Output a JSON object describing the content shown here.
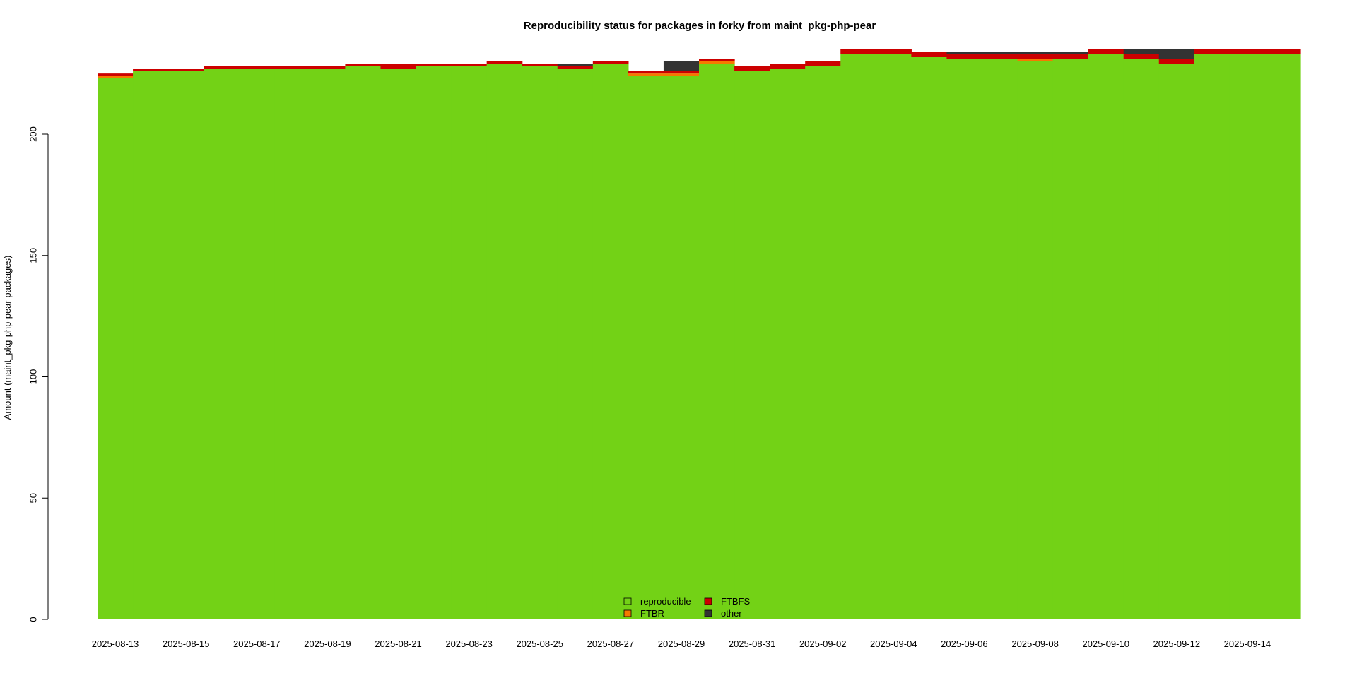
{
  "chart_data": {
    "type": "area",
    "stacked": true,
    "step": true,
    "title": "Reproducibility status for packages in forky from maint_pkg-php-pear",
    "xlabel": "",
    "ylabel": "Amount (maint_pkg-php-pear packages)",
    "ylim": [
      0,
      234
    ],
    "yticks": [
      0,
      50,
      100,
      150,
      200
    ],
    "xticks": [
      "2025-08-13",
      "2025-08-15",
      "2025-08-17",
      "2025-08-19",
      "2025-08-21",
      "2025-08-23",
      "2025-08-25",
      "2025-08-27",
      "2025-08-29",
      "2025-08-31",
      "2025-09-02",
      "2025-09-04",
      "2025-09-06",
      "2025-09-08",
      "2025-09-10",
      "2025-09-12",
      "2025-09-14"
    ],
    "x": [
      "2025-08-13",
      "2025-08-14",
      "2025-08-15",
      "2025-08-16",
      "2025-08-17",
      "2025-08-18",
      "2025-08-19",
      "2025-08-20",
      "2025-08-21",
      "2025-08-22",
      "2025-08-23",
      "2025-08-24",
      "2025-08-25",
      "2025-08-26",
      "2025-08-27",
      "2025-08-28",
      "2025-08-29",
      "2025-08-30",
      "2025-08-31",
      "2025-09-01",
      "2025-09-02",
      "2025-09-03",
      "2025-09-04",
      "2025-09-05",
      "2025-09-06",
      "2025-09-07",
      "2025-09-08",
      "2025-09-09",
      "2025-09-10",
      "2025-09-11",
      "2025-09-12",
      "2025-09-13",
      "2025-09-14",
      "2025-09-15"
    ],
    "series": [
      {
        "name": "reproducible",
        "color": "#73d216",
        "values": [
          223,
          226,
          226,
          227,
          227,
          227,
          227,
          228,
          227,
          228,
          228,
          229,
          228,
          227,
          229,
          224,
          224,
          229,
          226,
          227,
          228,
          233,
          233,
          232,
          231,
          231,
          230,
          231,
          233,
          231,
          229,
          233,
          233,
          233
        ]
      },
      {
        "name": "FTBR",
        "color": "#f57900",
        "values": [
          1,
          0,
          0,
          0,
          0,
          0,
          0,
          0,
          0,
          0,
          0,
          0,
          0,
          0,
          0,
          1,
          1,
          1,
          0,
          0,
          0,
          0,
          0,
          0,
          0,
          0,
          1,
          0,
          0,
          0,
          0,
          0,
          0,
          0
        ]
      },
      {
        "name": "FTBFS",
        "color": "#cc0000",
        "values": [
          1,
          1,
          1,
          1,
          1,
          1,
          1,
          1,
          2,
          1,
          1,
          1,
          1,
          1,
          1,
          1,
          1,
          1,
          2,
          2,
          2,
          2,
          2,
          2,
          2,
          2,
          2,
          2,
          2,
          2,
          2,
          2,
          2,
          2
        ]
      },
      {
        "name": "other",
        "color": "#333333",
        "values": [
          0,
          0,
          0,
          0,
          0,
          0,
          0,
          0,
          0,
          0,
          0,
          0,
          0,
          1,
          0,
          0,
          4,
          0,
          0,
          0,
          0,
          0,
          0,
          0,
          1,
          1,
          1,
          1,
          0,
          2,
          4,
          0,
          0,
          0
        ]
      }
    ],
    "legend": {
      "placement": "bottom-center",
      "columns": 2
    }
  }
}
